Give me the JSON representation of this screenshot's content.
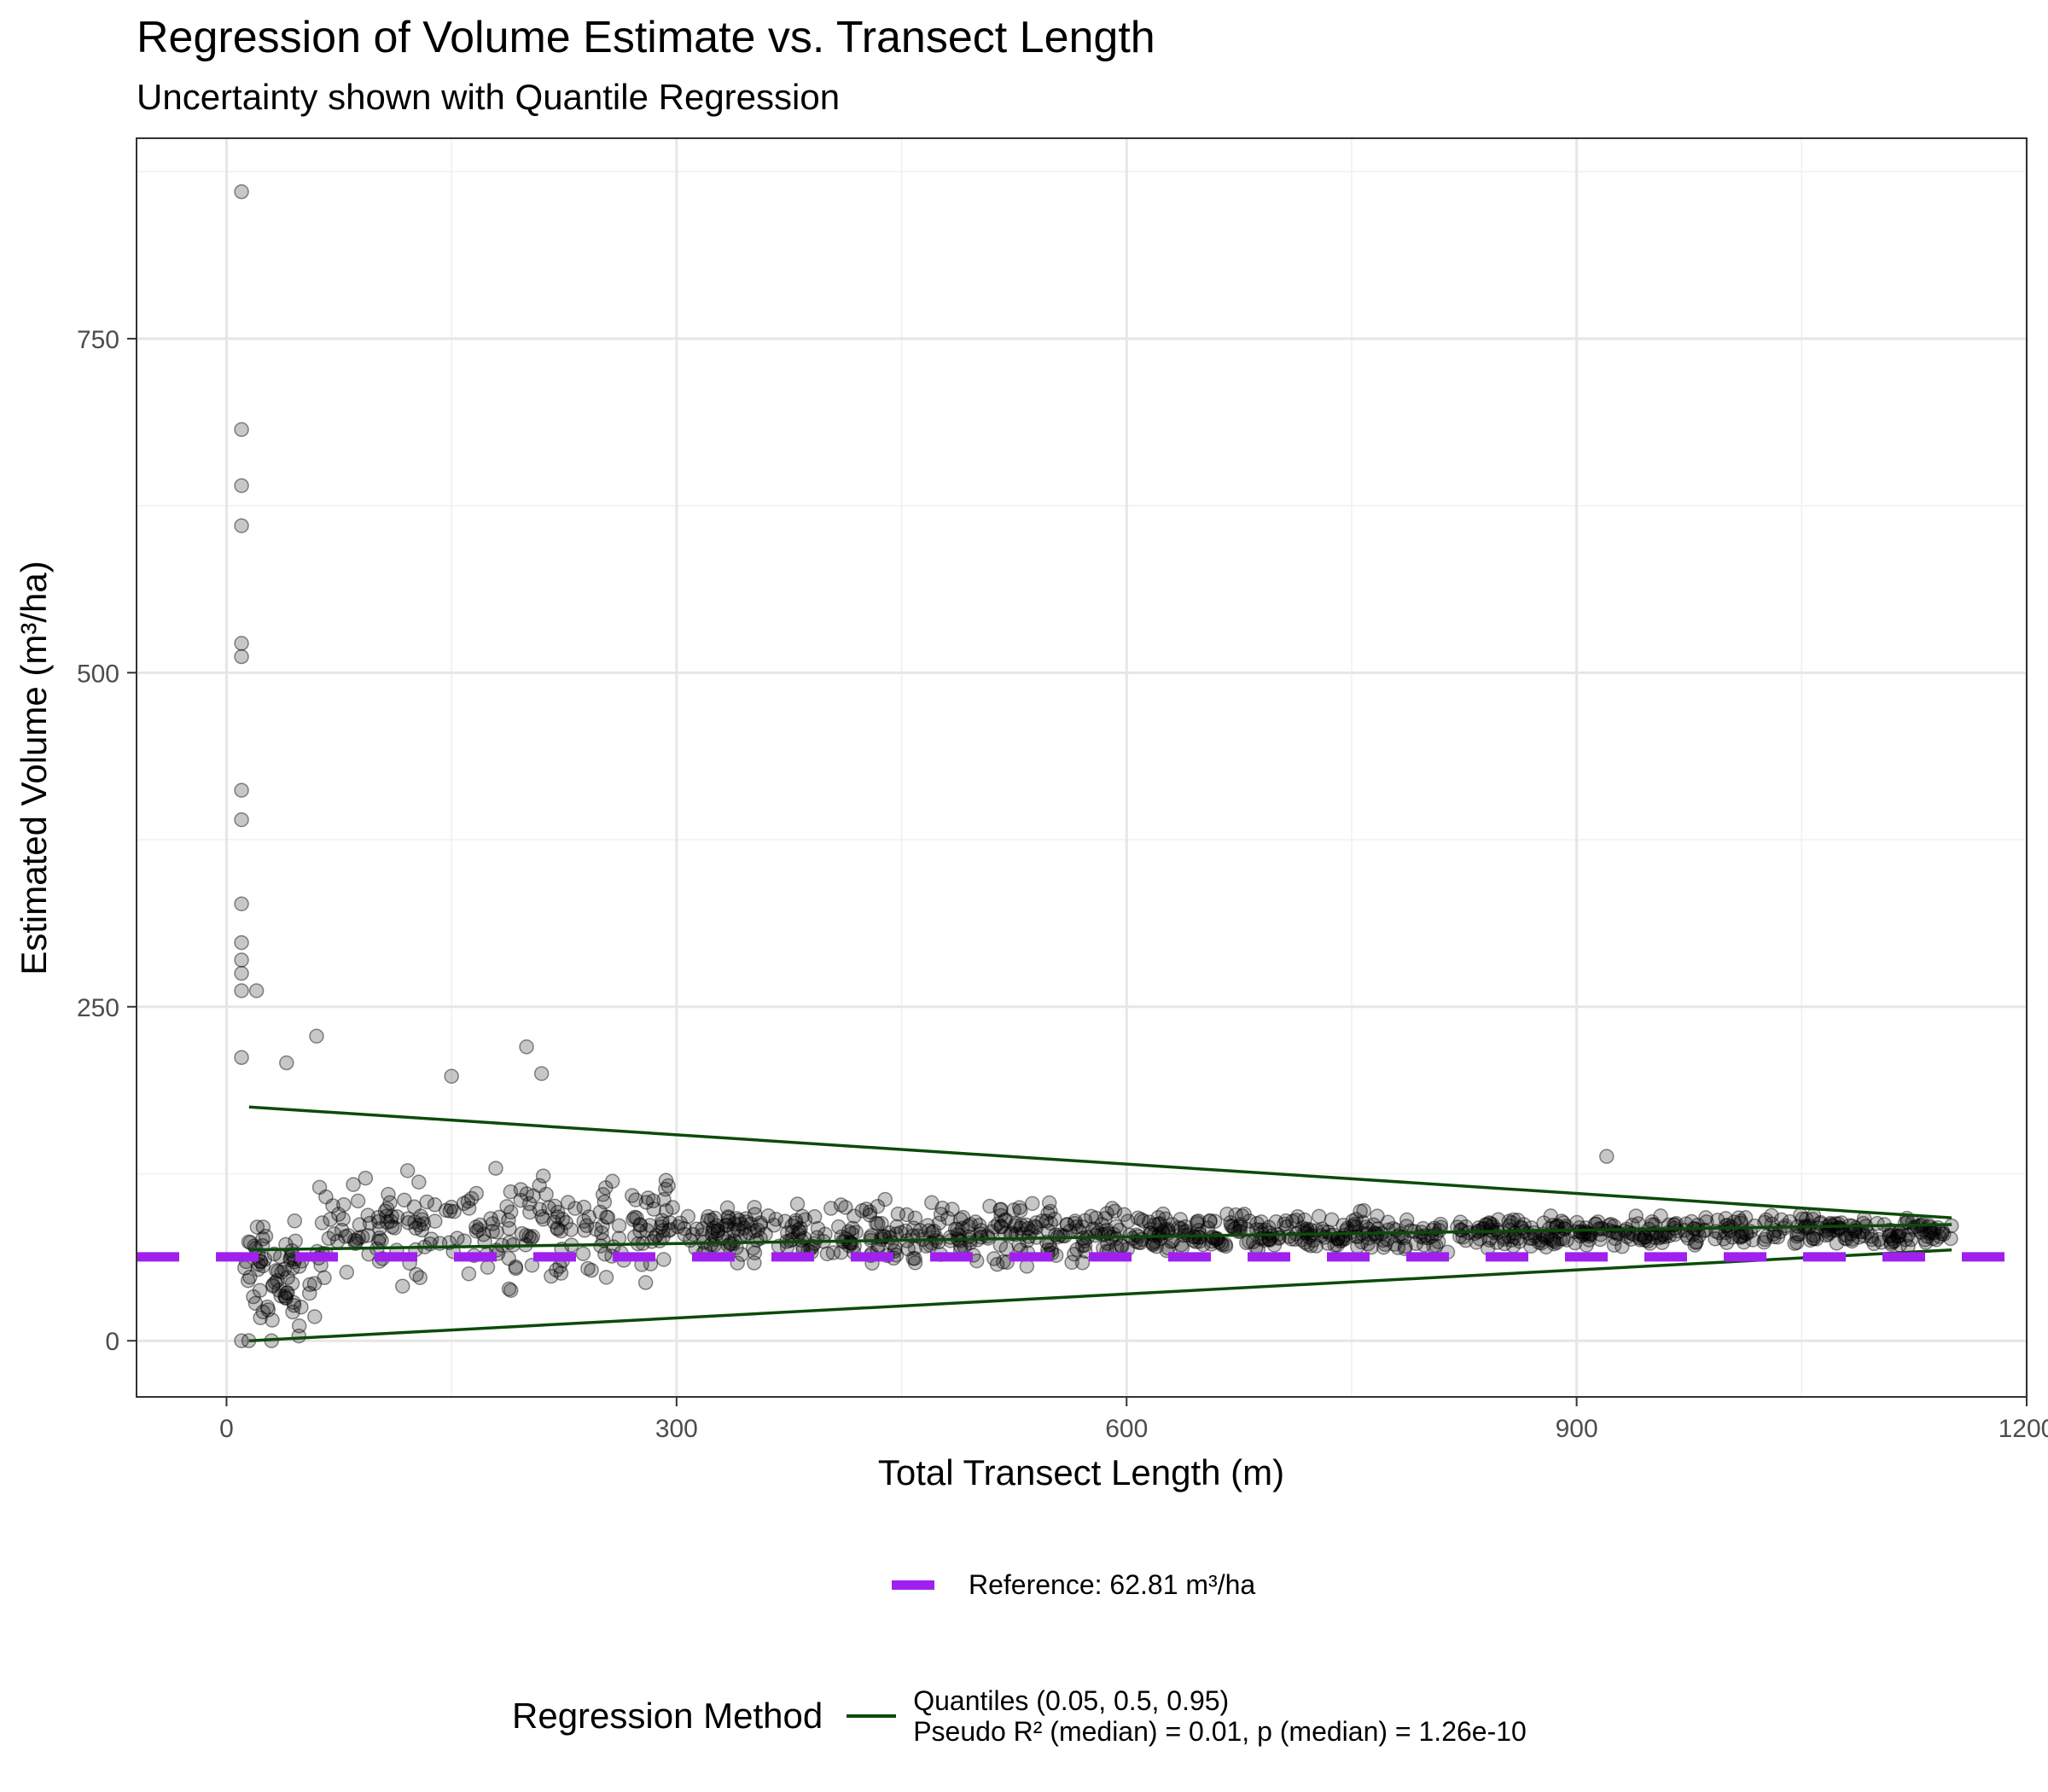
{
  "chart_data": {
    "type": "scatter",
    "title": "Regression of Volume Estimate vs. Transect Length",
    "subtitle": "Uncertainty shown with Quantile Regression",
    "xlabel": "Total Transect Length (m)",
    "ylabel": "Estimated Volume (m³/ha)",
    "xlim": [
      -60,
      1200
    ],
    "ylim": [
      -42,
      900
    ],
    "x_ticks": [
      0,
      300,
      600,
      900,
      1200
    ],
    "x_tick_labels": [
      "0",
      "300",
      "600",
      "900",
      "1200"
    ],
    "y_ticks": [
      0,
      250,
      500,
      750
    ],
    "y_tick_labels": [
      "0",
      "250",
      "500",
      "750"
    ],
    "grid": true,
    "points": {
      "description": "Individual estimates; semi-transparent grey markers",
      "color": "#000000",
      "opacity": 0.22,
      "notable_outliers": [
        {
          "x": 10,
          "y": 860
        },
        {
          "x": 10,
          "y": 682
        },
        {
          "x": 10,
          "y": 640
        },
        {
          "x": 10,
          "y": 610
        },
        {
          "x": 10,
          "y": 522
        },
        {
          "x": 10,
          "y": 512
        },
        {
          "x": 10,
          "y": 412
        },
        {
          "x": 10,
          "y": 390
        },
        {
          "x": 10,
          "y": 327
        },
        {
          "x": 10,
          "y": 298
        },
        {
          "x": 10,
          "y": 285
        },
        {
          "x": 10,
          "y": 275
        },
        {
          "x": 10,
          "y": 262
        },
        {
          "x": 20,
          "y": 262
        },
        {
          "x": 10,
          "y": 212
        },
        {
          "x": 40,
          "y": 208
        },
        {
          "x": 60,
          "y": 228
        },
        {
          "x": 200,
          "y": 220
        },
        {
          "x": 210,
          "y": 200
        },
        {
          "x": 150,
          "y": 198
        },
        {
          "x": 920,
          "y": 138
        },
        {
          "x": 10,
          "y": 0
        },
        {
          "x": 30,
          "y": 0
        }
      ],
      "clusters": [
        {
          "x_range": [
            10,
            60
          ],
          "y_mean": 45,
          "y_spread": 60,
          "count": 70
        },
        {
          "x_range": [
            60,
            300
          ],
          "y_mean": 85,
          "y_spread": 55,
          "count": 230
        },
        {
          "x_range": [
            300,
            600
          ],
          "y_mean": 80,
          "y_spread": 30,
          "count": 330
        },
        {
          "x_range": [
            600,
            900
          ],
          "y_mean": 80,
          "y_spread": 20,
          "count": 330
        },
        {
          "x_range": [
            900,
            1150
          ],
          "y_mean": 82,
          "y_spread": 16,
          "count": 260
        }
      ]
    },
    "quantile_lines": [
      {
        "tau": 0.95,
        "x": [
          15,
          1150
        ],
        "y": [
          175,
          92
        ]
      },
      {
        "tau": 0.5,
        "x": [
          15,
          1150
        ],
        "y": [
          68,
          87
        ]
      },
      {
        "tau": 0.05,
        "x": [
          15,
          1150
        ],
        "y": [
          0,
          68
        ]
      }
    ],
    "reference_line": {
      "y": 62.81,
      "color": "#A020F0",
      "style": "dashed"
    },
    "legend": {
      "placement": "bottom",
      "reference_label": "Reference: 62.81 m³/ha",
      "method_title": "Regression Method",
      "method_label_1": "Quantiles (0.05, 0.5, 0.95)",
      "method_label_2": "Pseudo R² (median) = 0.01, p (median) = 1.26e-10",
      "line_color": "#0B4B0B"
    }
  }
}
